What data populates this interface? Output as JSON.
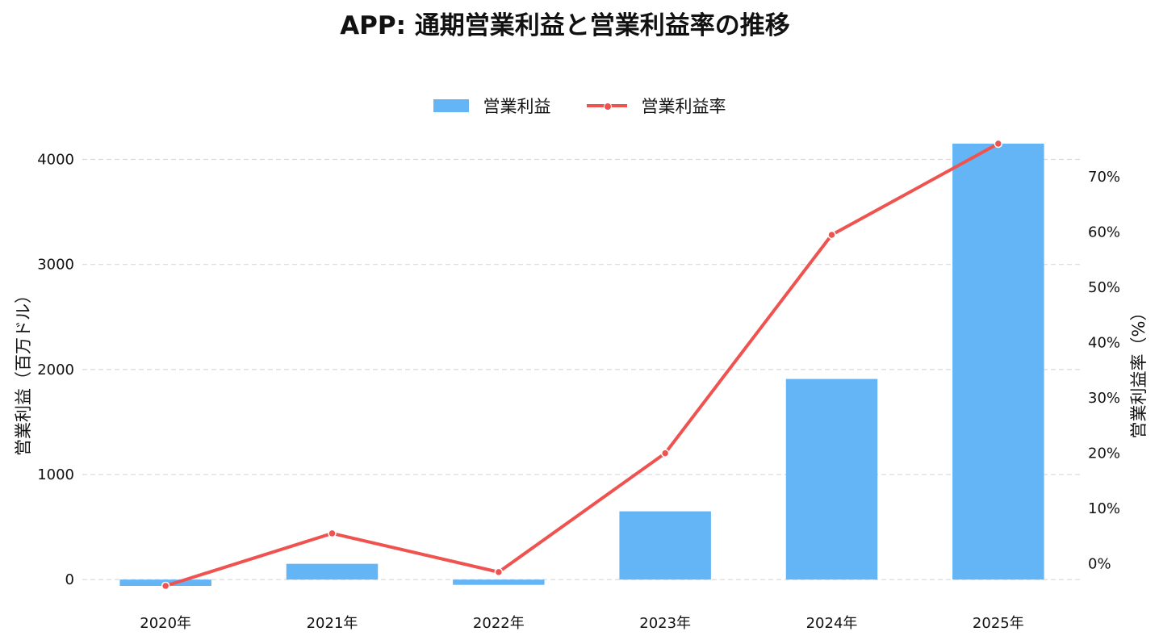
{
  "title": "APP: 通期営業利益と営業利益率の推移",
  "colors": {
    "bar": "#64b5f6",
    "line": "#ef5350",
    "grid": "#d9d9d9"
  },
  "legend": {
    "bar_label": "営業利益",
    "line_label": "営業利益率"
  },
  "chart_data": {
    "type": "bar",
    "title": "APP: 通期営業利益と営業利益率の推移",
    "categories": [
      "2020年",
      "2021年",
      "2022年",
      "2023年",
      "2024年",
      "2025年"
    ],
    "xlabel": "",
    "ylabel": "営業利益（百万ドル）",
    "y2label": "営業利益率（%）",
    "ylim": [
      -60,
      4150
    ],
    "y2lim": [
      -4,
      76
    ],
    "yticks": [
      0,
      1000,
      2000,
      3000,
      4000
    ],
    "y2ticks": [
      0,
      10,
      20,
      30,
      40,
      50,
      60,
      70
    ],
    "y2tick_suffix": "%",
    "grid": true,
    "legend_position": "top-center",
    "series": [
      {
        "name": "営業利益",
        "type": "bar",
        "axis": "left",
        "values": [
          -60,
          150,
          -50,
          650,
          1910,
          4150
        ]
      },
      {
        "name": "営業利益率",
        "type": "line",
        "axis": "right",
        "values": [
          -4,
          5.5,
          -1.5,
          20,
          59.5,
          76
        ]
      }
    ]
  }
}
